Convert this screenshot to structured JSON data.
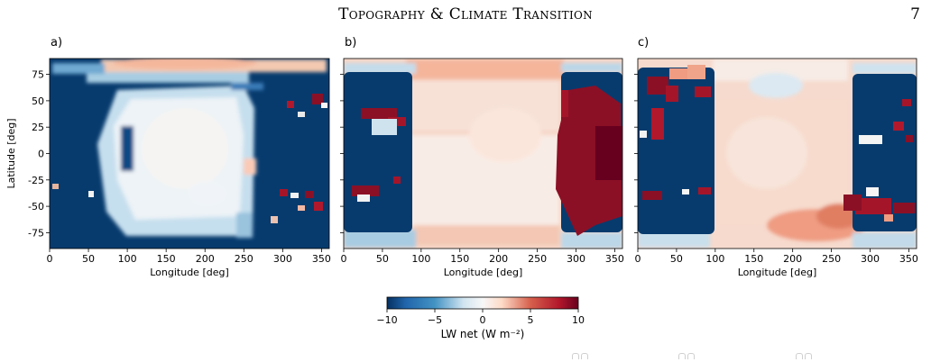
{
  "header": {
    "running_title": "Topography & Climate Transition",
    "page_number": "7"
  },
  "panels": [
    {
      "label": "a)"
    },
    {
      "label": "b)"
    },
    {
      "label": "c)"
    }
  ],
  "chart_data": {
    "type": "heatmap",
    "panels": [
      "a)",
      "b)",
      "c)"
    ],
    "xlabel": "Longitude [deg]",
    "ylabel": "Latitude [deg]",
    "xlim": [
      0,
      360
    ],
    "ylim": [
      -90,
      90
    ],
    "xticks": [
      0,
      50,
      100,
      150,
      200,
      250,
      300,
      350
    ],
    "yticks": [
      75,
      50,
      25,
      0,
      -25,
      -50,
      -75
    ],
    "colorbar": {
      "label": "LW net (W m⁻²)",
      "range": [
        -10,
        10
      ],
      "ticks": [
        -10,
        -5,
        0,
        5,
        10
      ],
      "colormap": "RdBu_r",
      "colors": {
        "low": "#053061",
        "mid": "#f7f7f7",
        "high": "#67001f"
      }
    }
  }
}
